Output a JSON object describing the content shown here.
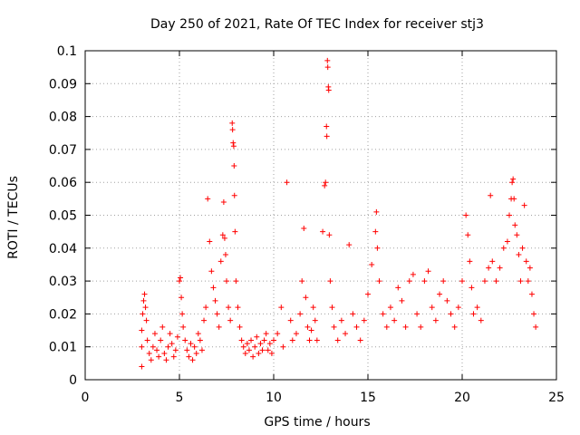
{
  "chart_data": {
    "type": "scatter",
    "title": "Day 250 of 2021, Rate Of TEC Index for receiver stj3",
    "xlabel": "GPS time / hours",
    "ylabel": "ROTI / TECUs",
    "xlim": [
      0,
      25
    ],
    "ylim": [
      0,
      0.1
    ],
    "xticks": [
      "0",
      "5",
      "10",
      "15",
      "20",
      "25"
    ],
    "yticks": [
      "0",
      "0.01",
      "0.02",
      "0.03",
      "0.04",
      "0.05",
      "0.06",
      "0.07",
      "0.08",
      "0.09",
      "0.1"
    ],
    "grid": true,
    "marker": "plus",
    "color": "#ff0000",
    "series": [
      {
        "points": [
          [
            3.0,
            0.004
          ],
          [
            3.0,
            0.01
          ],
          [
            3.0,
            0.015
          ],
          [
            3.05,
            0.02
          ],
          [
            3.1,
            0.024
          ],
          [
            3.15,
            0.026
          ],
          [
            3.2,
            0.022
          ],
          [
            3.25,
            0.018
          ],
          [
            3.3,
            0.012
          ],
          [
            3.4,
            0.008
          ],
          [
            3.5,
            0.006
          ],
          [
            3.6,
            0.01
          ],
          [
            3.7,
            0.014
          ],
          [
            3.8,
            0.009
          ],
          [
            3.9,
            0.007
          ],
          [
            4.0,
            0.012
          ],
          [
            4.1,
            0.016
          ],
          [
            4.2,
            0.008
          ],
          [
            4.3,
            0.006
          ],
          [
            4.4,
            0.01
          ],
          [
            4.5,
            0.014
          ],
          [
            4.6,
            0.011
          ],
          [
            4.7,
            0.007
          ],
          [
            4.8,
            0.009
          ],
          [
            4.9,
            0.013
          ],
          [
            5.0,
            0.03
          ],
          [
            5.05,
            0.031
          ],
          [
            5.1,
            0.025
          ],
          [
            5.15,
            0.02
          ],
          [
            5.2,
            0.016
          ],
          [
            5.3,
            0.012
          ],
          [
            5.4,
            0.009
          ],
          [
            5.5,
            0.007
          ],
          [
            5.6,
            0.011
          ],
          [
            5.7,
            0.006
          ],
          [
            5.8,
            0.01
          ],
          [
            5.9,
            0.008
          ],
          [
            6.0,
            0.014
          ],
          [
            6.1,
            0.012
          ],
          [
            6.2,
            0.009
          ],
          [
            6.3,
            0.018
          ],
          [
            6.4,
            0.022
          ],
          [
            6.5,
            0.055
          ],
          [
            6.6,
            0.042
          ],
          [
            6.7,
            0.033
          ],
          [
            6.8,
            0.028
          ],
          [
            6.9,
            0.024
          ],
          [
            7.0,
            0.02
          ],
          [
            7.1,
            0.016
          ],
          [
            7.2,
            0.036
          ],
          [
            7.3,
            0.044
          ],
          [
            7.35,
            0.054
          ],
          [
            7.4,
            0.043
          ],
          [
            7.45,
            0.038
          ],
          [
            7.5,
            0.03
          ],
          [
            7.6,
            0.022
          ],
          [
            7.7,
            0.018
          ],
          [
            7.8,
            0.078
          ],
          [
            7.82,
            0.076
          ],
          [
            7.85,
            0.072
          ],
          [
            7.88,
            0.071
          ],
          [
            7.9,
            0.065
          ],
          [
            7.92,
            0.056
          ],
          [
            7.95,
            0.045
          ],
          [
            8.0,
            0.03
          ],
          [
            8.1,
            0.022
          ],
          [
            8.2,
            0.016
          ],
          [
            8.3,
            0.012
          ],
          [
            8.4,
            0.01
          ],
          [
            8.5,
            0.008
          ],
          [
            8.6,
            0.011
          ],
          [
            8.7,
            0.009
          ],
          [
            8.8,
            0.012
          ],
          [
            8.9,
            0.007
          ],
          [
            9.0,
            0.01
          ],
          [
            9.1,
            0.013
          ],
          [
            9.2,
            0.008
          ],
          [
            9.3,
            0.011
          ],
          [
            9.4,
            0.009
          ],
          [
            9.5,
            0.012
          ],
          [
            9.6,
            0.014
          ],
          [
            9.7,
            0.009
          ],
          [
            9.8,
            0.011
          ],
          [
            9.9,
            0.008
          ],
          [
            10.0,
            0.012
          ],
          [
            10.2,
            0.014
          ],
          [
            10.4,
            0.022
          ],
          [
            10.5,
            0.01
          ],
          [
            10.7,
            0.06
          ],
          [
            10.9,
            0.018
          ],
          [
            11.0,
            0.012
          ],
          [
            11.2,
            0.014
          ],
          [
            11.4,
            0.02
          ],
          [
            11.5,
            0.03
          ],
          [
            11.6,
            0.046
          ],
          [
            11.7,
            0.025
          ],
          [
            11.8,
            0.016
          ],
          [
            11.9,
            0.012
          ],
          [
            12.0,
            0.015
          ],
          [
            12.1,
            0.022
          ],
          [
            12.2,
            0.018
          ],
          [
            12.3,
            0.012
          ],
          [
            12.6,
            0.045
          ],
          [
            12.7,
            0.059
          ],
          [
            12.75,
            0.06
          ],
          [
            12.8,
            0.077
          ],
          [
            12.82,
            0.074
          ],
          [
            12.85,
            0.097
          ],
          [
            12.87,
            0.095
          ],
          [
            12.9,
            0.089
          ],
          [
            12.92,
            0.088
          ],
          [
            12.95,
            0.044
          ],
          [
            13.0,
            0.03
          ],
          [
            13.1,
            0.022
          ],
          [
            13.2,
            0.016
          ],
          [
            13.4,
            0.012
          ],
          [
            13.6,
            0.018
          ],
          [
            13.8,
            0.014
          ],
          [
            14.0,
            0.041
          ],
          [
            14.2,
            0.02
          ],
          [
            14.4,
            0.016
          ],
          [
            14.6,
            0.012
          ],
          [
            14.8,
            0.018
          ],
          [
            15.0,
            0.026
          ],
          [
            15.2,
            0.035
          ],
          [
            15.4,
            0.045
          ],
          [
            15.45,
            0.051
          ],
          [
            15.5,
            0.04
          ],
          [
            15.6,
            0.03
          ],
          [
            15.8,
            0.02
          ],
          [
            16.0,
            0.016
          ],
          [
            16.2,
            0.022
          ],
          [
            16.4,
            0.018
          ],
          [
            16.6,
            0.028
          ],
          [
            16.8,
            0.024
          ],
          [
            17.0,
            0.016
          ],
          [
            17.2,
            0.03
          ],
          [
            17.4,
            0.032
          ],
          [
            17.6,
            0.02
          ],
          [
            17.8,
            0.016
          ],
          [
            18.0,
            0.03
          ],
          [
            18.2,
            0.033
          ],
          [
            18.4,
            0.022
          ],
          [
            18.6,
            0.018
          ],
          [
            18.8,
            0.026
          ],
          [
            19.0,
            0.03
          ],
          [
            19.2,
            0.024
          ],
          [
            19.4,
            0.02
          ],
          [
            19.6,
            0.016
          ],
          [
            19.8,
            0.022
          ],
          [
            20.0,
            0.03
          ],
          [
            20.2,
            0.05
          ],
          [
            20.3,
            0.044
          ],
          [
            20.4,
            0.036
          ],
          [
            20.5,
            0.028
          ],
          [
            20.6,
            0.02
          ],
          [
            20.8,
            0.022
          ],
          [
            21.0,
            0.018
          ],
          [
            21.2,
            0.03
          ],
          [
            21.4,
            0.034
          ],
          [
            21.5,
            0.056
          ],
          [
            21.6,
            0.036
          ],
          [
            21.8,
            0.03
          ],
          [
            22.0,
            0.034
          ],
          [
            22.2,
            0.04
          ],
          [
            22.4,
            0.042
          ],
          [
            22.5,
            0.05
          ],
          [
            22.6,
            0.055
          ],
          [
            22.65,
            0.06
          ],
          [
            22.7,
            0.061
          ],
          [
            22.75,
            0.055
          ],
          [
            22.8,
            0.047
          ],
          [
            22.9,
            0.044
          ],
          [
            23.0,
            0.038
          ],
          [
            23.1,
            0.03
          ],
          [
            23.2,
            0.04
          ],
          [
            23.3,
            0.053
          ],
          [
            23.4,
            0.036
          ],
          [
            23.5,
            0.03
          ],
          [
            23.6,
            0.034
          ],
          [
            23.7,
            0.026
          ],
          [
            23.8,
            0.02
          ],
          [
            23.9,
            0.016
          ]
        ]
      }
    ]
  }
}
